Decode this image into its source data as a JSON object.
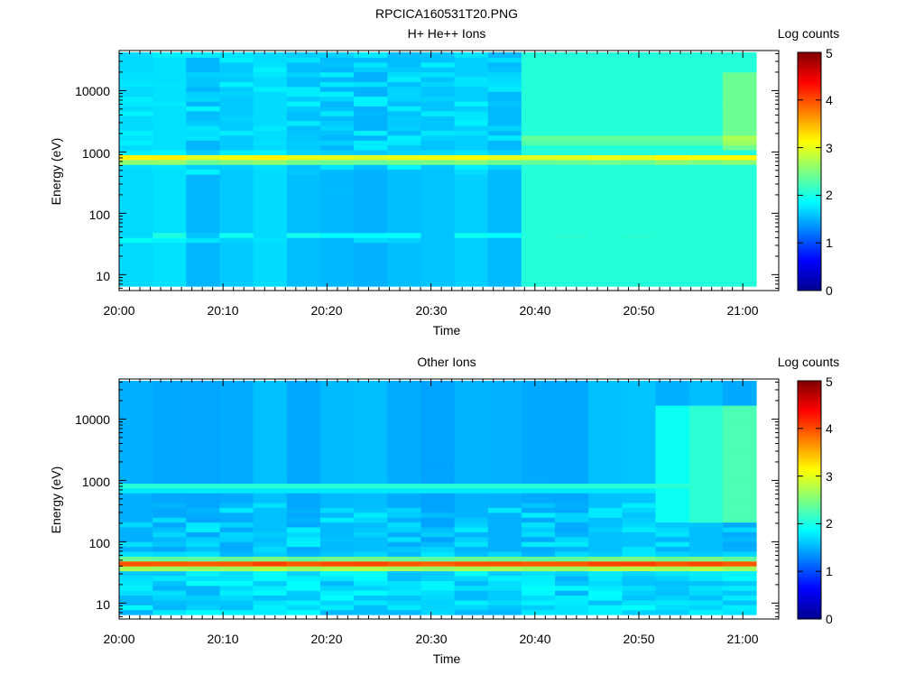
{
  "figure": {
    "title": "RPCICA160531T20.PNG"
  },
  "chart_data": [
    {
      "type": "heatmap",
      "title": "H+ He++ Ions",
      "xlabel": "Time",
      "ylabel": "Energy (eV)",
      "x_ticks": [
        "20:00",
        "20:10",
        "20:20",
        "20:30",
        "20:40",
        "20:50",
        "21:00"
      ],
      "y_ticks": [
        "10",
        "100",
        "1000",
        "10000"
      ],
      "y_scale": "log",
      "ylim": [
        5.5,
        45000
      ],
      "colorbar": {
        "label": "Log counts",
        "ticks": [
          "0",
          "1",
          "2",
          "3",
          "4",
          "5"
        ],
        "range": [
          0,
          5
        ],
        "colormap": "jet"
      },
      "time_range": [
        "20:00",
        "21:01"
      ],
      "description_bands": [
        {
          "energy_eV": 780,
          "log_counts": 3.2
        },
        {
          "energy_eV": 40,
          "log_counts": 2.0
        },
        {
          "energy_eV": 1600,
          "log_counts": 2.5,
          "from": "20:40"
        }
      ]
    },
    {
      "type": "heatmap",
      "title": "Other Ions",
      "xlabel": "Time",
      "ylabel": "Energy (eV)",
      "x_ticks": [
        "20:00",
        "20:10",
        "20:20",
        "20:30",
        "20:40",
        "20:50",
        "21:00"
      ],
      "y_ticks": [
        "10",
        "100",
        "1000",
        "10000"
      ],
      "y_scale": "log",
      "ylim": [
        5.5,
        45000
      ],
      "colorbar": {
        "label": "Log counts",
        "ticks": [
          "0",
          "1",
          "2",
          "3",
          "4",
          "5"
        ],
        "range": [
          0,
          5
        ],
        "colormap": "jet"
      },
      "time_range": [
        "20:00",
        "21:01"
      ],
      "description_bands": [
        {
          "energy_eV": 45,
          "log_counts": 4.0
        },
        {
          "energy_eV": 780,
          "log_counts": 2.0
        }
      ]
    }
  ]
}
